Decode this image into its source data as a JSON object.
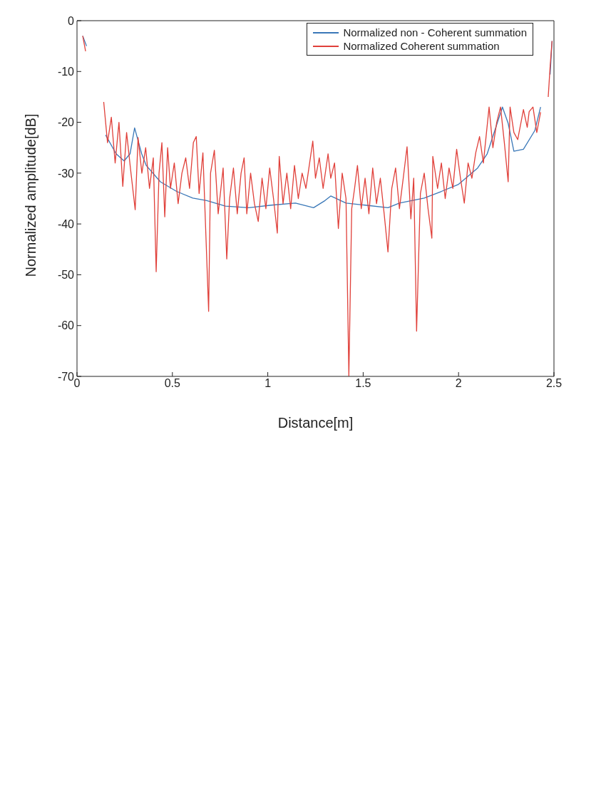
{
  "chart_data": {
    "type": "line",
    "xlabel": "Distance[m]",
    "ylabel": "Normalized amplitude[dB]",
    "xlim": [
      0,
      2.5
    ],
    "xticks": [
      0,
      0.5,
      1,
      1.5,
      2,
      2.5
    ],
    "ylim": [
      -70,
      0
    ],
    "yticks": [
      -70,
      -60,
      -50,
      -40,
      -30,
      -20,
      -10,
      0
    ],
    "legend": "top right",
    "marker": "none",
    "line_style": "solid",
    "series": [
      {
        "name": "Normalized non - Coherent summation",
        "color": "#3a78b8",
        "x": [
          0.03,
          0.05,
          0.1,
          0.15,
          0.205,
          0.247,
          0.278,
          0.302,
          0.339,
          0.363,
          0.437,
          0.522,
          0.607,
          0.68,
          0.778,
          0.9,
          1.02,
          1.145,
          1.24,
          1.3,
          1.33,
          1.41,
          1.51,
          1.63,
          1.69,
          1.82,
          1.91,
          2.0,
          2.1,
          2.15,
          2.19,
          2.23,
          2.26,
          2.29,
          2.34,
          2.4,
          2.43,
          2.46,
          2.48,
          2.49
        ],
        "values": [
          -3,
          -5,
          null,
          -22.5,
          -26.2,
          -27.6,
          -26.2,
          -21.1,
          -26.2,
          -28.5,
          -31.7,
          -33.6,
          -34.9,
          -35.4,
          -36.5,
          -36.8,
          -36.3,
          -35.9,
          -36.8,
          -35.4,
          -34.5,
          -35.9,
          -36.3,
          -36.8,
          -35.9,
          -34.9,
          -33.6,
          -32.2,
          -29,
          -26.2,
          -21.6,
          -17,
          -20.2,
          -25.7,
          -25.3,
          -21.6,
          -17,
          null,
          -10.6,
          -4
        ]
      },
      {
        "name": "Normalized Coherent summation",
        "color": "#e0403a",
        "x": [
          0.03,
          0.045,
          0.1,
          0.14,
          0.16,
          0.18,
          0.2,
          0.22,
          0.24,
          0.26,
          0.28,
          0.305,
          0.32,
          0.34,
          0.36,
          0.38,
          0.4,
          0.415,
          0.43,
          0.445,
          0.46,
          0.475,
          0.49,
          0.51,
          0.53,
          0.55,
          0.57,
          0.59,
          0.61,
          0.625,
          0.64,
          0.66,
          0.69,
          0.7,
          0.72,
          0.74,
          0.766,
          0.785,
          0.8,
          0.82,
          0.84,
          0.86,
          0.876,
          0.89,
          0.91,
          0.93,
          0.95,
          0.97,
          0.99,
          1.01,
          1.03,
          1.05,
          1.06,
          1.08,
          1.1,
          1.12,
          1.14,
          1.16,
          1.18,
          1.2,
          1.236,
          1.25,
          1.27,
          1.29,
          1.316,
          1.33,
          1.35,
          1.37,
          1.39,
          1.41,
          1.425,
          1.44,
          1.455,
          1.47,
          1.49,
          1.51,
          1.53,
          1.55,
          1.57,
          1.59,
          1.61,
          1.63,
          1.65,
          1.67,
          1.69,
          1.71,
          1.73,
          1.75,
          1.765,
          1.78,
          1.8,
          1.82,
          1.84,
          1.86,
          1.865,
          1.89,
          1.91,
          1.93,
          1.95,
          1.97,
          1.99,
          2.01,
          2.03,
          2.05,
          2.07,
          2.09,
          2.11,
          2.13,
          2.16,
          2.18,
          2.2,
          2.22,
          2.24,
          2.26,
          2.27,
          2.29,
          2.31,
          2.34,
          2.36,
          2.37,
          2.39,
          2.41,
          2.43,
          2.46,
          2.47,
          2.48,
          2.49
        ],
        "values": [
          -3,
          -6,
          null,
          -16,
          -24,
          -19,
          -28,
          -20,
          -32.6,
          -22,
          -29,
          -37.2,
          -23,
          -30,
          -25,
          -33,
          -27,
          -49.4,
          -30,
          -24,
          -38.6,
          -25,
          -33,
          -28,
          -36,
          -30,
          -27,
          -33,
          -24,
          -22.8,
          -34,
          -26,
          -57.2,
          -30,
          -25.5,
          -38,
          -29,
          -46.9,
          -35,
          -29,
          -38,
          -30,
          -27,
          -38,
          -30,
          -36,
          -39.5,
          -31,
          -37,
          -29,
          -35,
          -41.8,
          -26.7,
          -36,
          -30,
          -37,
          -28.5,
          -35,
          -30,
          -33,
          -23.7,
          -31,
          -27,
          -33,
          -26.2,
          -31,
          -28,
          -40.9,
          -30,
          -35,
          -69.9,
          -37,
          -33,
          -28.5,
          -37,
          -31,
          -38,
          -29,
          -36,
          -31,
          -38,
          -45.5,
          -33,
          -29,
          -37,
          -31,
          -24.8,
          -39,
          -31,
          -61.1,
          -34,
          -30,
          -37,
          -42.8,
          -26.7,
          -33,
          -28,
          -35,
          -29,
          -33,
          -25.3,
          -31,
          -35.9,
          -28,
          -31,
          -26,
          -22.8,
          -28,
          -17,
          -25,
          -20,
          -17,
          -24,
          -31.7,
          -17,
          -22,
          -23.4,
          -17.5,
          -21,
          -17.9,
          -17,
          -22,
          -18,
          null,
          -15,
          -9,
          -4
        ]
      }
    ]
  }
}
